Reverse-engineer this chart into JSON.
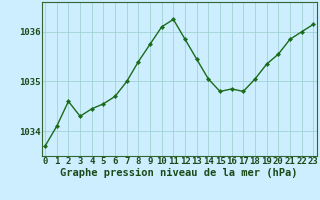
{
  "x": [
    0,
    1,
    2,
    3,
    4,
    5,
    6,
    7,
    8,
    9,
    10,
    11,
    12,
    13,
    14,
    15,
    16,
    17,
    18,
    19,
    20,
    21,
    22,
    23
  ],
  "y": [
    1033.7,
    1034.1,
    1034.6,
    1034.3,
    1034.45,
    1034.55,
    1034.7,
    1035.0,
    1035.4,
    1035.75,
    1036.1,
    1036.25,
    1035.85,
    1035.45,
    1035.05,
    1034.8,
    1034.85,
    1034.8,
    1035.05,
    1035.35,
    1035.55,
    1035.85,
    1036.0,
    1036.15
  ],
  "line_color": "#1a6b1a",
  "marker": "D",
  "marker_size": 2.2,
  "linewidth": 1.0,
  "bg_color": "#cceeff",
  "grid_color": "#99cccc",
  "axis_bg": "#cceeff",
  "xlabel": "Graphe pression niveau de la mer (hPa)",
  "xlabel_fontsize": 7.5,
  "tick_color": "#1a4a1a",
  "tick_fontsize": 6.5,
  "ylim": [
    1033.5,
    1036.6
  ],
  "yticks": [
    1034,
    1035,
    1036
  ],
  "xticks": [
    0,
    1,
    2,
    3,
    4,
    5,
    6,
    7,
    8,
    9,
    10,
    11,
    12,
    13,
    14,
    15,
    16,
    17,
    18,
    19,
    20,
    21,
    22,
    23
  ],
  "spine_color": "#336633",
  "bottom_bar_color": "#336633"
}
